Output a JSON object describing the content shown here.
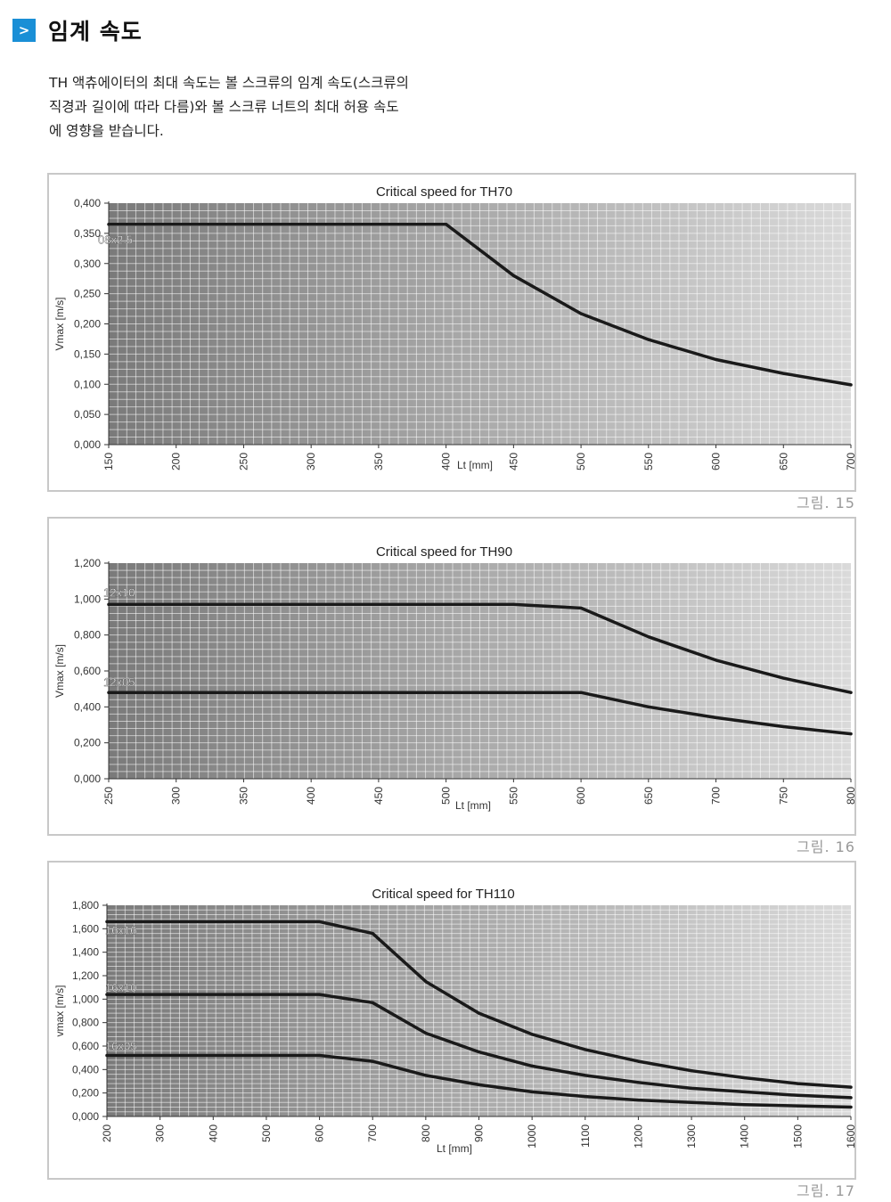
{
  "section": {
    "badge": ">",
    "title": "임계 속도"
  },
  "intro": {
    "line1": "TH 액츄에이터의 최대 속도는 볼 스크류의 임계 속도(스크류의",
    "line2": "직경과 길이에 따라 다름)와  볼 스크류 너트의 최대 허용 속도",
    "line3": "에 영향을 받습니다."
  },
  "captions": [
    "그림. 15",
    "그림. 16",
    "그림. 17"
  ],
  "chart_data": [
    {
      "type": "line",
      "title": "Critical speed for TH70",
      "xlabel": "Lt [mm]",
      "ylabel": "Vmax [m/s]",
      "x": [
        150,
        200,
        250,
        300,
        350,
        400,
        450,
        500,
        550,
        600,
        650,
        700
      ],
      "xlim": [
        150,
        700
      ],
      "ylim": [
        0,
        0.4
      ],
      "yticks": [
        "0,000",
        "0,050",
        "0,100",
        "0,150",
        "0,200",
        "0,250",
        "0,300",
        "0,350",
        "0,400"
      ],
      "xticks": [
        "150",
        "200",
        "250",
        "300",
        "350",
        "400",
        "450",
        "500",
        "550",
        "600",
        "650",
        "700"
      ],
      "grid": true,
      "series": [
        {
          "name": "08x2.5",
          "points": [
            [
              150,
              0.365
            ],
            [
              400,
              0.365
            ],
            [
              450,
              0.28
            ],
            [
              500,
              0.217
            ],
            [
              550,
              0.174
            ],
            [
              600,
              0.141
            ],
            [
              650,
              0.118
            ],
            [
              700,
              0.099
            ]
          ]
        }
      ]
    },
    {
      "type": "line",
      "title": "Critical speed for TH90",
      "xlabel": "Lt [mm]",
      "ylabel": "Vmax [m/s]",
      "x": [
        250,
        300,
        350,
        400,
        450,
        500,
        550,
        600,
        650,
        700,
        750,
        800
      ],
      "xlim": [
        250,
        800
      ],
      "ylim": [
        0,
        1.2
      ],
      "yticks": [
        "0,000",
        "0,200",
        "0,400",
        "0,600",
        "0,800",
        "1,000",
        "1,200"
      ],
      "xticks": [
        "250",
        "300",
        "350",
        "400",
        "450",
        "500",
        "550",
        "600",
        "650",
        "700",
        "750",
        "800"
      ],
      "grid": true,
      "series": [
        {
          "name": "12x10",
          "points": [
            [
              250,
              0.97
            ],
            [
              550,
              0.97
            ],
            [
              600,
              0.95
            ],
            [
              650,
              0.79
            ],
            [
              700,
              0.66
            ],
            [
              750,
              0.56
            ],
            [
              800,
              0.48
            ]
          ]
        },
        {
          "name": "12x05",
          "points": [
            [
              250,
              0.48
            ],
            [
              600,
              0.48
            ],
            [
              650,
              0.4
            ],
            [
              700,
              0.34
            ],
            [
              750,
              0.29
            ],
            [
              800,
              0.25
            ]
          ]
        }
      ]
    },
    {
      "type": "line",
      "title": "Critical speed for TH110",
      "xlabel": "Lt [mm]",
      "ylabel": "vmax [m/s]",
      "x": [
        200,
        300,
        400,
        500,
        600,
        700,
        800,
        900,
        1000,
        1100,
        1200,
        1300,
        1400,
        1500,
        1600
      ],
      "xlim": [
        200,
        1600
      ],
      "ylim": [
        0,
        1.8
      ],
      "yticks": [
        "0,000",
        "0,200",
        "0,400",
        "0,600",
        "0,800",
        "1,000",
        "1,200",
        "1,400",
        "1,600",
        "1,800"
      ],
      "xticks": [
        "200",
        "300",
        "400",
        "500",
        "600",
        "700",
        "800",
        "900",
        "1000",
        "1100",
        "1200",
        "1300",
        "1400",
        "1500",
        "1600"
      ],
      "grid": true,
      "series": [
        {
          "name": "16x16",
          "points": [
            [
              200,
              1.66
            ],
            [
              600,
              1.66
            ],
            [
              700,
              1.56
            ],
            [
              800,
              1.15
            ],
            [
              900,
              0.88
            ],
            [
              1000,
              0.7
            ],
            [
              1100,
              0.57
            ],
            [
              1200,
              0.47
            ],
            [
              1300,
              0.39
            ],
            [
              1400,
              0.33
            ],
            [
              1500,
              0.28
            ],
            [
              1600,
              0.25
            ]
          ]
        },
        {
          "name": "16x10",
          "points": [
            [
              200,
              1.04
            ],
            [
              600,
              1.04
            ],
            [
              700,
              0.97
            ],
            [
              800,
              0.71
            ],
            [
              900,
              0.55
            ],
            [
              1000,
              0.43
            ],
            [
              1100,
              0.35
            ],
            [
              1200,
              0.29
            ],
            [
              1300,
              0.24
            ],
            [
              1400,
              0.21
            ],
            [
              1500,
              0.18
            ],
            [
              1600,
              0.16
            ]
          ]
        },
        {
          "name": "16x05",
          "points": [
            [
              200,
              0.52
            ],
            [
              600,
              0.52
            ],
            [
              700,
              0.47
            ],
            [
              800,
              0.35
            ],
            [
              900,
              0.27
            ],
            [
              1000,
              0.21
            ],
            [
              1100,
              0.17
            ],
            [
              1200,
              0.14
            ],
            [
              1300,
              0.12
            ],
            [
              1400,
              0.1
            ],
            [
              1500,
              0.09
            ],
            [
              1600,
              0.08
            ]
          ]
        }
      ]
    }
  ]
}
